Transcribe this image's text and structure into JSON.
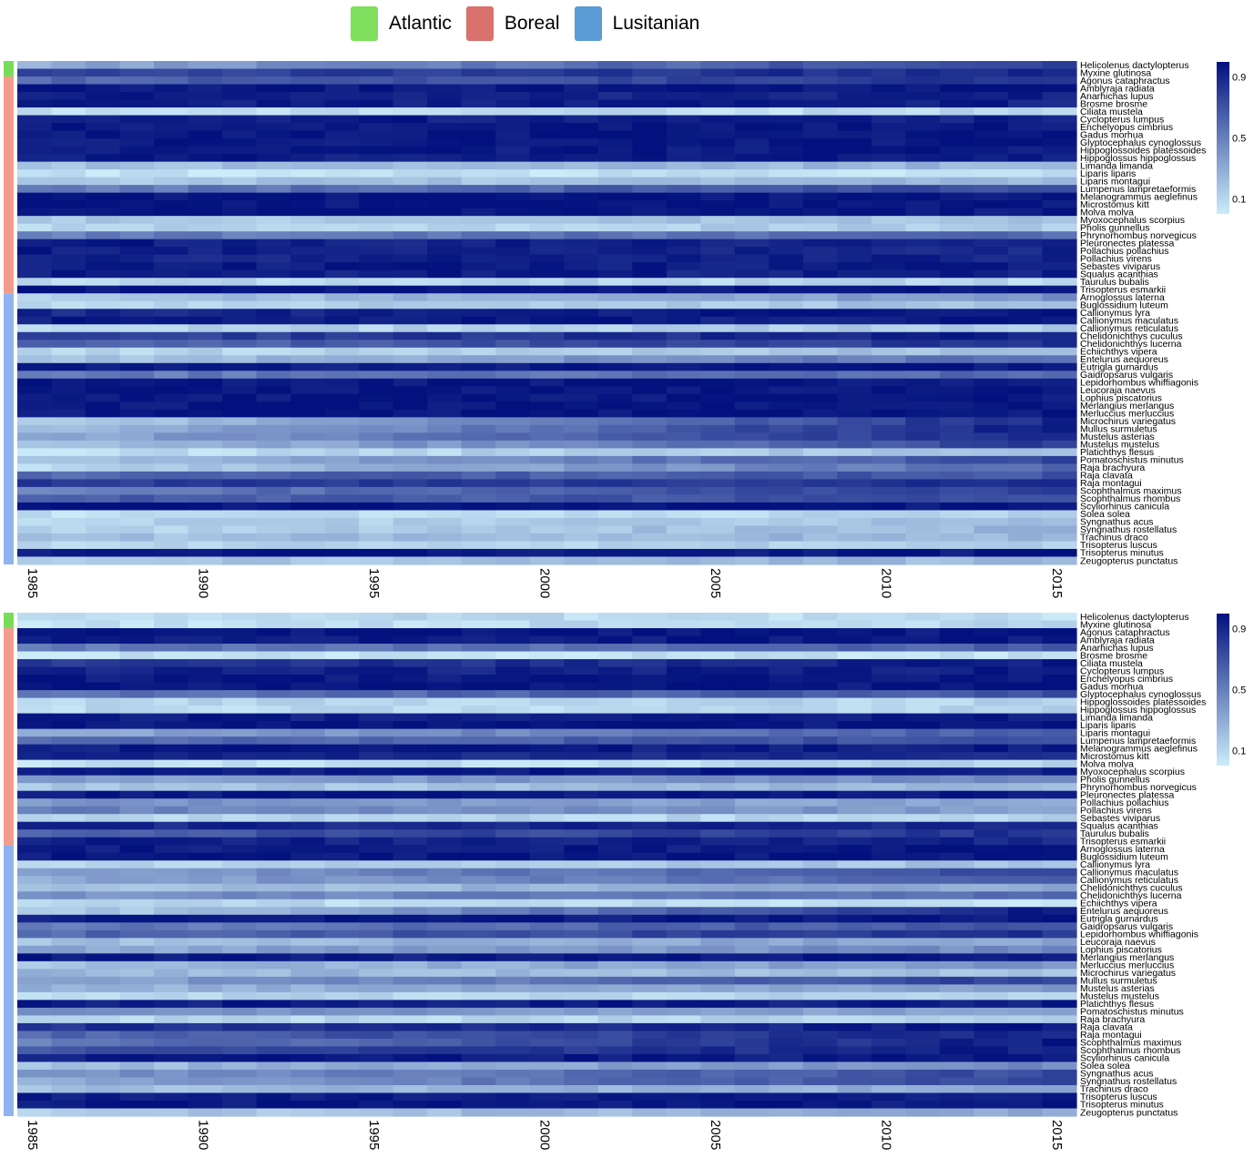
{
  "chart_data": {
    "type": "heatmap",
    "legend": [
      {
        "name": "Atlantic",
        "color": "#7ee05c"
      },
      {
        "name": "Boreal",
        "color": "#d9716c"
      },
      {
        "name": "Lusitanian",
        "color": "#5b9bd5"
      }
    ],
    "group_colors": {
      "Atlantic": "#77dd59",
      "Boreal": "#f29c8c",
      "Lusitanian": "#8fb3ef"
    },
    "years": [
      1985,
      1986,
      1987,
      1988,
      1989,
      1990,
      1991,
      1992,
      1993,
      1994,
      1995,
      1996,
      1997,
      1998,
      1999,
      2000,
      2001,
      2002,
      2003,
      2004,
      2005,
      2006,
      2007,
      2008,
      2009,
      2010,
      2011,
      2012,
      2013,
      2014,
      2015
    ],
    "x_ticks": [
      "1985",
      "1990",
      "1995",
      "2000",
      "2005",
      "2010",
      "2015"
    ],
    "colorbar_ticks": [
      "0.9",
      "0.5",
      "0.1"
    ],
    "color_range": [
      "#ccecf9",
      "#02117e"
    ],
    "species": [
      {
        "name": "Helicolenus dactylopterus",
        "group": "Atlantic"
      },
      {
        "name": "Myxine glutinosa",
        "group": "Atlantic"
      },
      {
        "name": "Agonus cataphractus",
        "group": "Boreal"
      },
      {
        "name": "Amblyraja radiata",
        "group": "Boreal"
      },
      {
        "name": "Anarhichas lupus",
        "group": "Boreal"
      },
      {
        "name": "Brosme brosme",
        "group": "Boreal"
      },
      {
        "name": "Ciliata mustela",
        "group": "Boreal"
      },
      {
        "name": "Cyclopterus lumpus",
        "group": "Boreal"
      },
      {
        "name": "Enchelyopus cimbrius",
        "group": "Boreal"
      },
      {
        "name": "Gadus morhua",
        "group": "Boreal"
      },
      {
        "name": "Glyptocephalus cynoglossus",
        "group": "Boreal"
      },
      {
        "name": "Hippoglossoides platessoides",
        "group": "Boreal"
      },
      {
        "name": "Hippoglossus hippoglossus",
        "group": "Boreal"
      },
      {
        "name": "Limanda limanda",
        "group": "Boreal"
      },
      {
        "name": "Liparis liparis",
        "group": "Boreal"
      },
      {
        "name": "Liparis montagui",
        "group": "Boreal"
      },
      {
        "name": "Lumpenus lampretaeformis",
        "group": "Boreal"
      },
      {
        "name": "Melanogrammus aeglefinus",
        "group": "Boreal"
      },
      {
        "name": "Microstomus kitt",
        "group": "Boreal"
      },
      {
        "name": "Molva molva",
        "group": "Boreal"
      },
      {
        "name": "Myoxocephalus scorpius",
        "group": "Boreal"
      },
      {
        "name": "Pholis gunnellus",
        "group": "Boreal"
      },
      {
        "name": "Phrynorhombus norvegicus",
        "group": "Boreal"
      },
      {
        "name": "Pleuronectes platessa",
        "group": "Boreal"
      },
      {
        "name": "Pollachius pollachius",
        "group": "Boreal"
      },
      {
        "name": "Pollachius virens",
        "group": "Boreal"
      },
      {
        "name": "Sebastes viviparus",
        "group": "Boreal"
      },
      {
        "name": "Squalus acanthias",
        "group": "Boreal"
      },
      {
        "name": "Taurulus bubalis",
        "group": "Boreal"
      },
      {
        "name": "Trisopterus esmarkii",
        "group": "Boreal"
      },
      {
        "name": "Arnoglossus laterna",
        "group": "Lusitanian"
      },
      {
        "name": "Buglossidium luteum",
        "group": "Lusitanian"
      },
      {
        "name": "Callionymus lyra",
        "group": "Lusitanian"
      },
      {
        "name": "Callionymus maculatus",
        "group": "Lusitanian"
      },
      {
        "name": "Callionymus reticulatus",
        "group": "Lusitanian"
      },
      {
        "name": "Chelidonichthys cuculus",
        "group": "Lusitanian"
      },
      {
        "name": "Chelidonichthys lucerna",
        "group": "Lusitanian"
      },
      {
        "name": "Echiichthys vipera",
        "group": "Lusitanian"
      },
      {
        "name": "Entelurus aequoreus",
        "group": "Lusitanian"
      },
      {
        "name": "Eutrigla gurnardus",
        "group": "Lusitanian"
      },
      {
        "name": "Gaidropsarus vulgaris",
        "group": "Lusitanian"
      },
      {
        "name": "Lepidorhombus whiffiagonis",
        "group": "Lusitanian"
      },
      {
        "name": "Leucoraja naevus",
        "group": "Lusitanian"
      },
      {
        "name": "Lophius piscatorius",
        "group": "Lusitanian"
      },
      {
        "name": "Merlangius merlangus",
        "group": "Lusitanian"
      },
      {
        "name": "Merluccius merluccius",
        "group": "Lusitanian"
      },
      {
        "name": "Microchirus variegatus",
        "group": "Lusitanian"
      },
      {
        "name": "Mullus surmuletus",
        "group": "Lusitanian"
      },
      {
        "name": "Mustelus asterias",
        "group": "Lusitanian"
      },
      {
        "name": "Mustelus mustelus",
        "group": "Lusitanian"
      },
      {
        "name": "Platichthys flesus",
        "group": "Lusitanian"
      },
      {
        "name": "Pomatoschistus minutus",
        "group": "Lusitanian"
      },
      {
        "name": "Raja brachyura",
        "group": "Lusitanian"
      },
      {
        "name": "Raja clavata",
        "group": "Lusitanian"
      },
      {
        "name": "Raja montagui",
        "group": "Lusitanian"
      },
      {
        "name": "Scophthalmus maximus",
        "group": "Lusitanian"
      },
      {
        "name": "Scophthalmus rhombus",
        "group": "Lusitanian"
      },
      {
        "name": "Scyliorhinus canicula",
        "group": "Lusitanian"
      },
      {
        "name": "Solea solea",
        "group": "Lusitanian"
      },
      {
        "name": "Syngnathus acus",
        "group": "Lusitanian"
      },
      {
        "name": "Syngnathus rostellatus",
        "group": "Lusitanian"
      },
      {
        "name": "Trachinus draco",
        "group": "Lusitanian"
      },
      {
        "name": "Trisopterus luscus",
        "group": "Lusitanian"
      },
      {
        "name": "Trisopterus minutus",
        "group": "Lusitanian"
      },
      {
        "name": "Zeugopterus punctatus",
        "group": "Lusitanian"
      }
    ],
    "panels": [
      {
        "name": "top",
        "rows": [
          [
            0.3,
            0.8
          ],
          [
            0.75,
            0.9
          ],
          [
            0.6,
            0.85
          ],
          [
            0.98,
            0.98
          ],
          [
            0.95,
            0.92
          ],
          [
            0.95,
            0.93
          ],
          [
            0.05,
            0.08
          ],
          [
            0.95,
            0.93
          ],
          [
            0.97,
            0.97
          ],
          [
            0.98,
            0.98
          ],
          [
            0.97,
            0.97
          ],
          [
            0.97,
            0.97
          ],
          [
            0.95,
            0.95
          ],
          [
            0.2,
            0.25
          ],
          [
            0.03,
            0.05
          ],
          [
            0.15,
            0.25
          ],
          [
            0.5,
            0.75
          ],
          [
            0.98,
            0.98
          ],
          [
            0.98,
            0.98
          ],
          [
            0.98,
            0.98
          ],
          [
            0.15,
            0.2
          ],
          [
            0.1,
            0.15
          ],
          [
            0.5,
            0.6
          ],
          [
            0.95,
            0.9
          ],
          [
            0.95,
            0.9
          ],
          [
            0.92,
            0.92
          ],
          [
            0.95,
            0.95
          ],
          [
            0.95,
            0.92
          ],
          [
            0.1,
            0.1
          ],
          [
            0.98,
            0.98
          ],
          [
            0.15,
            0.4
          ],
          [
            0.1,
            0.2
          ],
          [
            0.9,
            0.98
          ],
          [
            0.95,
            0.95
          ],
          [
            0.1,
            0.15
          ],
          [
            0.75,
            0.95
          ],
          [
            0.6,
            0.85
          ],
          [
            0.1,
            0.2
          ],
          [
            0.15,
            0.6
          ],
          [
            0.95,
            0.97
          ],
          [
            0.5,
            0.6
          ],
          [
            0.98,
            0.98
          ],
          [
            0.98,
            0.98
          ],
          [
            0.98,
            0.98
          ],
          [
            0.98,
            0.98
          ],
          [
            0.98,
            0.98
          ],
          [
            0.1,
            0.9
          ],
          [
            0.2,
            0.95
          ],
          [
            0.3,
            0.9
          ],
          [
            0.15,
            0.8
          ],
          [
            0.05,
            0.2
          ],
          [
            0.2,
            0.75
          ],
          [
            0.1,
            0.6
          ],
          [
            0.6,
            0.7
          ],
          [
            0.8,
            0.85
          ],
          [
            0.5,
            0.8
          ],
          [
            0.65,
            0.7
          ],
          [
            0.98,
            0.98
          ],
          [
            0.05,
            0.1
          ],
          [
            0.1,
            0.2
          ],
          [
            0.1,
            0.25
          ],
          [
            0.2,
            0.25
          ],
          [
            0.1,
            0.15
          ],
          [
            0.98,
            0.98
          ],
          [
            0.15,
            0.25
          ]
        ]
      },
      {
        "name": "bottom",
        "rows": [
          [
            0.1,
            0.05
          ],
          [
            0.05,
            0.1
          ],
          [
            0.98,
            0.98
          ],
          [
            0.95,
            0.97
          ],
          [
            0.5,
            0.65
          ],
          [
            0.03,
            0.05
          ],
          [
            0.8,
            0.95
          ],
          [
            0.9,
            0.95
          ],
          [
            0.97,
            0.97
          ],
          [
            0.98,
            0.98
          ],
          [
            0.55,
            0.7
          ],
          [
            0.1,
            0.1
          ],
          [
            0.08,
            0.1
          ],
          [
            0.95,
            0.95
          ],
          [
            0.98,
            0.98
          ],
          [
            0.3,
            0.65
          ],
          [
            0.55,
            0.75
          ],
          [
            0.95,
            0.95
          ],
          [
            0.9,
            0.9
          ],
          [
            0.05,
            0.1
          ],
          [
            0.95,
            0.95
          ],
          [
            0.35,
            0.45
          ],
          [
            0.15,
            0.25
          ],
          [
            0.97,
            0.97
          ],
          [
            0.4,
            0.3
          ],
          [
            0.5,
            0.35
          ],
          [
            0.1,
            0.1
          ],
          [
            0.9,
            0.9
          ],
          [
            0.65,
            0.85
          ],
          [
            0.95,
            0.9
          ],
          [
            0.95,
            0.97
          ],
          [
            0.98,
            0.98
          ],
          [
            0.1,
            0.2
          ],
          [
            0.35,
            0.75
          ],
          [
            0.3,
            0.65
          ],
          [
            0.2,
            0.3
          ],
          [
            0.4,
            0.6
          ],
          [
            0.1,
            0.05
          ],
          [
            0.1,
            0.95
          ],
          [
            0.95,
            0.97
          ],
          [
            0.5,
            0.7
          ],
          [
            0.6,
            0.85
          ],
          [
            0.2,
            0.35
          ],
          [
            0.3,
            0.45
          ],
          [
            0.95,
            0.97
          ],
          [
            0.2,
            0.4
          ],
          [
            0.25,
            0.2
          ],
          [
            0.3,
            0.8
          ],
          [
            0.25,
            0.35
          ],
          [
            0.1,
            0.1
          ],
          [
            0.95,
            0.95
          ],
          [
            0.4,
            0.35
          ],
          [
            0.1,
            0.1
          ],
          [
            0.85,
            0.95
          ],
          [
            0.6,
            0.9
          ],
          [
            0.5,
            0.95
          ],
          [
            0.7,
            0.95
          ],
          [
            0.95,
            0.95
          ],
          [
            0.2,
            0.45
          ],
          [
            0.4,
            0.75
          ],
          [
            0.3,
            0.8
          ],
          [
            0.2,
            0.3
          ],
          [
            0.95,
            0.97
          ],
          [
            0.97,
            0.97
          ],
          [
            0.15,
            0.3
          ]
        ]
      }
    ]
  }
}
